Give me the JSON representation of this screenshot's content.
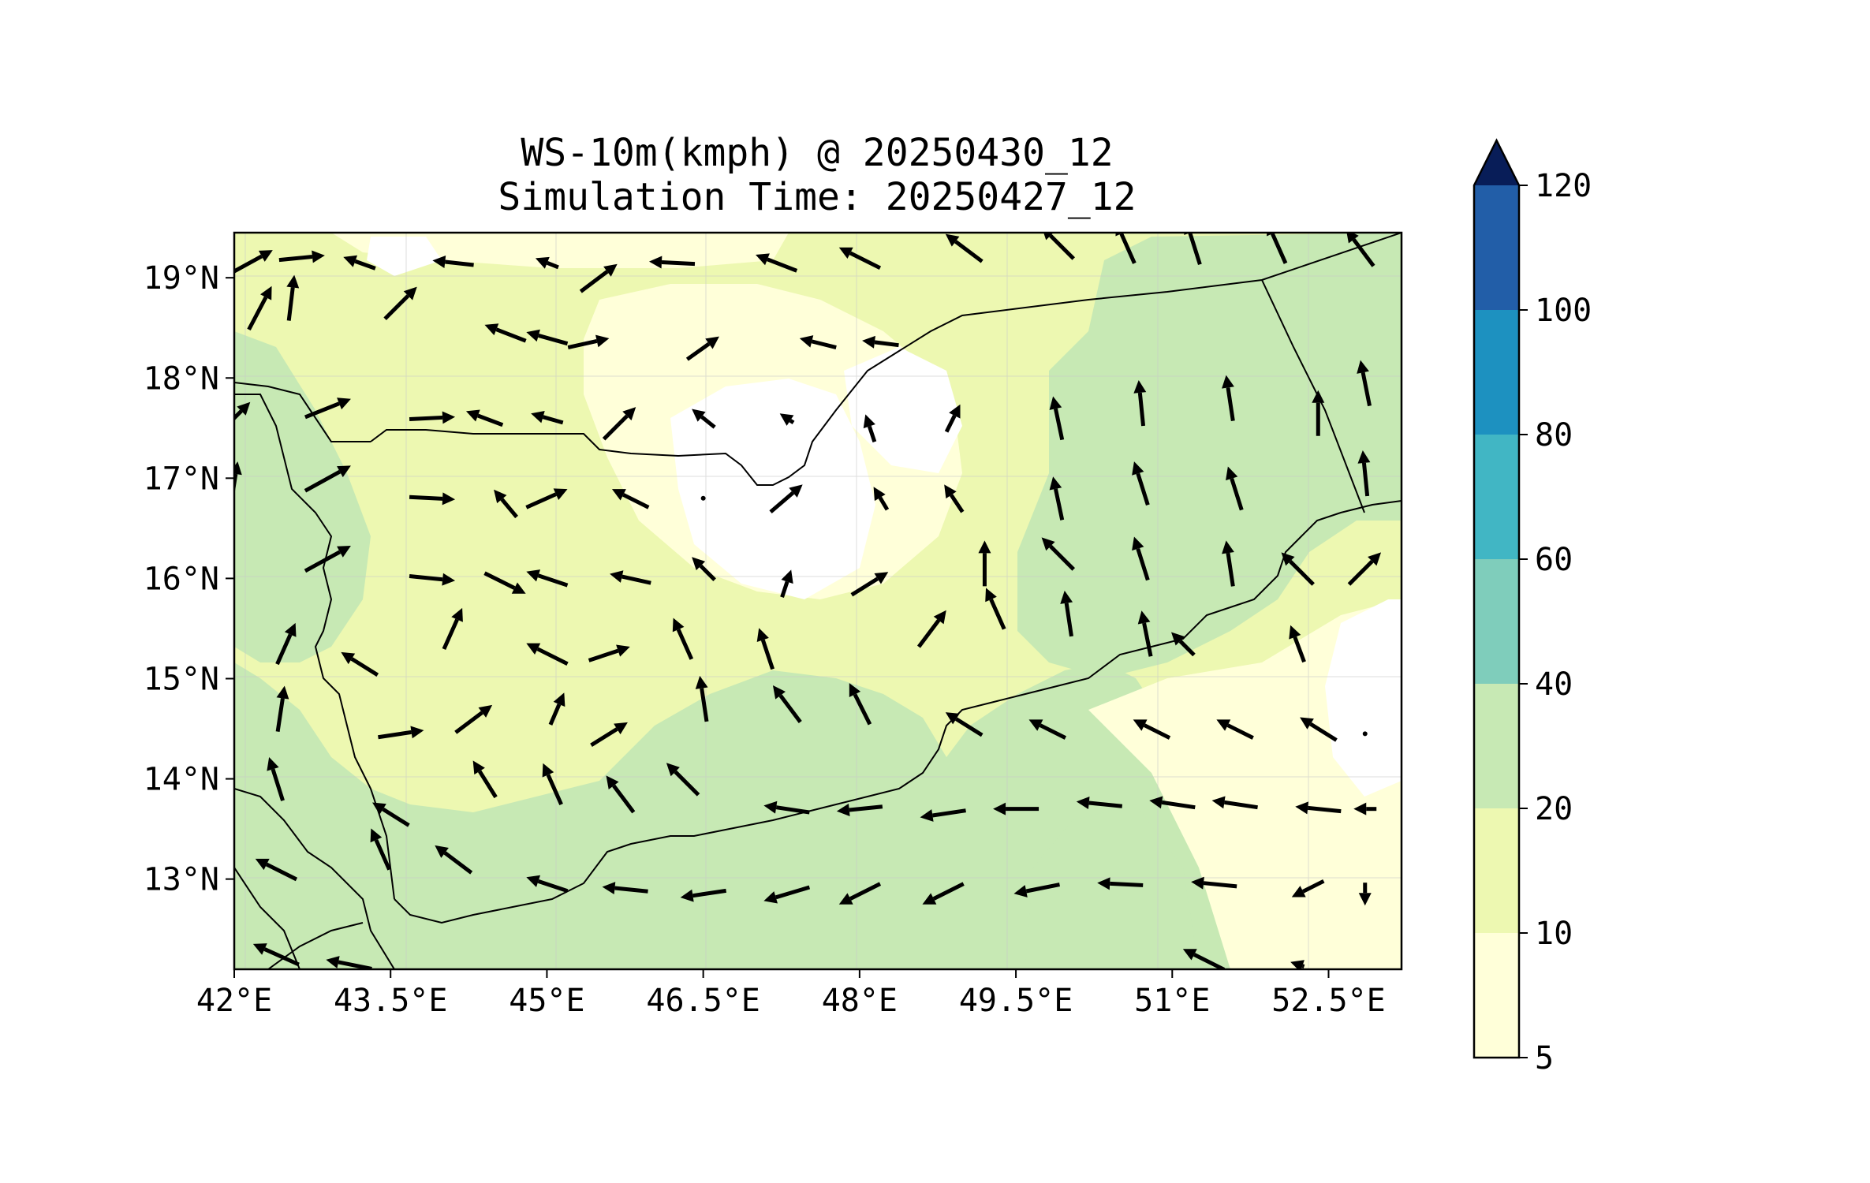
{
  "title": {
    "line1": "WS-10m(kmph) @ 20250430_12",
    "line2": "Simulation Time: 20250427_12"
  },
  "map": {
    "lon_range": [
      42.0,
      53.2
    ],
    "lat_range": [
      12.1,
      19.45
    ],
    "x_ticks": [
      {
        "value": 42.0,
        "label": "42°E"
      },
      {
        "value": 43.5,
        "label": "43.5°E"
      },
      {
        "value": 45.0,
        "label": "45°E"
      },
      {
        "value": 46.5,
        "label": "46.5°E"
      },
      {
        "value": 48.0,
        "label": "48°E"
      },
      {
        "value": 49.5,
        "label": "49.5°E"
      },
      {
        "value": 51.0,
        "label": "51°E"
      },
      {
        "value": 52.5,
        "label": "52.5°E"
      }
    ],
    "y_ticks": [
      {
        "value": 19,
        "label": "19°N"
      },
      {
        "value": 18,
        "label": "18°N"
      },
      {
        "value": 17,
        "label": "17°N"
      },
      {
        "value": 16,
        "label": "16°N"
      },
      {
        "value": 15,
        "label": "15°N"
      },
      {
        "value": 14,
        "label": "14°N"
      },
      {
        "value": 13,
        "label": "13°N"
      }
    ]
  },
  "colorbar": {
    "levels": [
      5,
      10,
      20,
      40,
      60,
      80,
      100,
      120
    ],
    "labels": [
      "5",
      "10",
      "20",
      "40",
      "60",
      "80",
      "100",
      "120"
    ],
    "colors": [
      "#ffffd9",
      "#edf8b1",
      "#c7e9b4",
      "#7fcdbb",
      "#41b6c4",
      "#1d91c0",
      "#225ea8",
      "#253494"
    ],
    "extend_color": "#081d58",
    "extend": "max"
  },
  "chart_data": {
    "type": "heatmap",
    "variable": "10 m wind speed (kmph) with wind vectors",
    "wind_vectors": [
      {
        "lon": 42.15,
        "lat": 19.15,
        "u": 1.0,
        "v": 0.55
      },
      {
        "lon": 42.25,
        "lat": 18.7,
        "u": 0.5,
        "v": 0.95
      },
      {
        "lon": 42.55,
        "lat": 18.8,
        "u": 0.12,
        "v": 1.0
      },
      {
        "lon": 42.65,
        "lat": 19.2,
        "u": 1.0,
        "v": 0.1
      },
      {
        "lon": 43.2,
        "lat": 19.15,
        "u": -0.7,
        "v": 0.25
      },
      {
        "lon": 43.6,
        "lat": 18.75,
        "u": 0.7,
        "v": 0.7
      },
      {
        "lon": 44.1,
        "lat": 19.15,
        "u": -0.9,
        "v": 0.1
      },
      {
        "lon": 44.6,
        "lat": 18.45,
        "u": -0.9,
        "v": 0.35
      },
      {
        "lon": 45.0,
        "lat": 19.15,
        "u": -0.5,
        "v": 0.2
      },
      {
        "lon": 45.5,
        "lat": 19.0,
        "u": 0.8,
        "v": 0.6
      },
      {
        "lon": 45.0,
        "lat": 18.4,
        "u": -0.9,
        "v": 0.25
      },
      {
        "lon": 45.4,
        "lat": 18.35,
        "u": 0.9,
        "v": 0.2
      },
      {
        "lon": 46.2,
        "lat": 19.15,
        "u": -1.0,
        "v": 0.05
      },
      {
        "lon": 46.5,
        "lat": 18.3,
        "u": 0.7,
        "v": 0.5
      },
      {
        "lon": 47.2,
        "lat": 19.15,
        "u": -0.9,
        "v": 0.35
      },
      {
        "lon": 47.6,
        "lat": 18.35,
        "u": -0.8,
        "v": 0.2
      },
      {
        "lon": 48.0,
        "lat": 19.2,
        "u": -0.9,
        "v": 0.45
      },
      {
        "lon": 48.2,
        "lat": 18.35,
        "u": -0.8,
        "v": 0.1
      },
      {
        "lon": 49.0,
        "lat": 19.3,
        "u": -0.8,
        "v": 0.6
      },
      {
        "lon": 49.9,
        "lat": 19.35,
        "u": -0.7,
        "v": 0.7
      },
      {
        "lon": 50.55,
        "lat": 19.35,
        "u": -0.4,
        "v": 0.9
      },
      {
        "lon": 51.2,
        "lat": 19.35,
        "u": -0.3,
        "v": 0.95
      },
      {
        "lon": 52.0,
        "lat": 19.35,
        "u": -0.4,
        "v": 0.9
      },
      {
        "lon": 52.8,
        "lat": 19.3,
        "u": -0.6,
        "v": 0.8
      },
      {
        "lon": 42.0,
        "lat": 17.6,
        "u": 0.7,
        "v": 0.7
      },
      {
        "lon": 42.0,
        "lat": 16.95,
        "u": 0.15,
        "v": 0.95
      },
      {
        "lon": 42.9,
        "lat": 17.7,
        "u": 1.0,
        "v": 0.4
      },
      {
        "lon": 43.9,
        "lat": 17.6,
        "u": 1.0,
        "v": 0.05
      },
      {
        "lon": 44.4,
        "lat": 17.6,
        "u": -0.8,
        "v": 0.3
      },
      {
        "lon": 45.0,
        "lat": 17.6,
        "u": -0.7,
        "v": 0.2
      },
      {
        "lon": 45.7,
        "lat": 17.55,
        "u": 0.7,
        "v": 0.7
      },
      {
        "lon": 46.5,
        "lat": 17.6,
        "u": -0.5,
        "v": 0.4
      },
      {
        "lon": 47.3,
        "lat": 17.6,
        "u": -0.3,
        "v": 0.2
      },
      {
        "lon": 48.1,
        "lat": 17.5,
        "u": -0.2,
        "v": 0.6
      },
      {
        "lon": 48.9,
        "lat": 17.6,
        "u": 0.3,
        "v": 0.6
      },
      {
        "lon": 49.9,
        "lat": 17.6,
        "u": -0.2,
        "v": 0.95
      },
      {
        "lon": 50.7,
        "lat": 17.75,
        "u": -0.1,
        "v": 1.0
      },
      {
        "lon": 51.55,
        "lat": 17.8,
        "u": -0.15,
        "v": 1.0
      },
      {
        "lon": 52.4,
        "lat": 17.65,
        "u": 0.0,
        "v": 1.0
      },
      {
        "lon": 52.85,
        "lat": 17.95,
        "u": -0.2,
        "v": 1.0
      },
      {
        "lon": 42.9,
        "lat": 17.0,
        "u": 1.0,
        "v": 0.55
      },
      {
        "lon": 43.9,
        "lat": 16.8,
        "u": 1.0,
        "v": -0.05
      },
      {
        "lon": 44.6,
        "lat": 16.75,
        "u": -0.5,
        "v": 0.6
      },
      {
        "lon": 45.0,
        "lat": 16.8,
        "u": 0.9,
        "v": 0.4
      },
      {
        "lon": 45.8,
        "lat": 16.8,
        "u": -0.8,
        "v": 0.4
      },
      {
        "lon": 46.5,
        "lat": 16.8,
        "u": 0.0,
        "v": 0.0
      },
      {
        "lon": 47.3,
        "lat": 16.8,
        "u": 0.7,
        "v": 0.6
      },
      {
        "lon": 48.2,
        "lat": 16.8,
        "u": -0.3,
        "v": 0.5
      },
      {
        "lon": 48.9,
        "lat": 16.8,
        "u": -0.4,
        "v": 0.6
      },
      {
        "lon": 49.9,
        "lat": 16.8,
        "u": -0.2,
        "v": 0.95
      },
      {
        "lon": 50.7,
        "lat": 16.95,
        "u": -0.3,
        "v": 0.95
      },
      {
        "lon": 51.6,
        "lat": 16.9,
        "u": -0.3,
        "v": 0.95
      },
      {
        "lon": 52.85,
        "lat": 17.05,
        "u": -0.1,
        "v": 1.0
      },
      {
        "lon": 42.9,
        "lat": 16.2,
        "u": 1.0,
        "v": 0.55
      },
      {
        "lon": 43.9,
        "lat": 16.0,
        "u": 1.0,
        "v": -0.1
      },
      {
        "lon": 44.6,
        "lat": 15.95,
        "u": 0.9,
        "v": -0.45
      },
      {
        "lon": 45.0,
        "lat": 16.0,
        "u": -0.9,
        "v": 0.3
      },
      {
        "lon": 45.8,
        "lat": 16.0,
        "u": -0.9,
        "v": 0.2
      },
      {
        "lon": 46.5,
        "lat": 16.1,
        "u": -0.5,
        "v": 0.5
      },
      {
        "lon": 47.3,
        "lat": 15.95,
        "u": 0.2,
        "v": 0.6
      },
      {
        "lon": 48.1,
        "lat": 15.95,
        "u": 0.8,
        "v": 0.5
      },
      {
        "lon": 48.7,
        "lat": 15.5,
        "u": 0.6,
        "v": 0.8
      },
      {
        "lon": 49.3,
        "lat": 15.7,
        "u": -0.4,
        "v": 0.9
      },
      {
        "lon": 49.2,
        "lat": 16.15,
        "u": 0.0,
        "v": 1.0
      },
      {
        "lon": 49.9,
        "lat": 16.25,
        "u": -0.7,
        "v": 0.7
      },
      {
        "lon": 50.0,
        "lat": 15.65,
        "u": -0.15,
        "v": 1.0
      },
      {
        "lon": 50.7,
        "lat": 16.2,
        "u": -0.3,
        "v": 0.95
      },
      {
        "lon": 50.75,
        "lat": 15.45,
        "u": -0.2,
        "v": 1.0
      },
      {
        "lon": 51.55,
        "lat": 16.15,
        "u": -0.15,
        "v": 1.0
      },
      {
        "lon": 51.1,
        "lat": 15.35,
        "u": -0.5,
        "v": 0.5
      },
      {
        "lon": 52.2,
        "lat": 16.1,
        "u": -0.7,
        "v": 0.7
      },
      {
        "lon": 52.2,
        "lat": 15.35,
        "u": -0.3,
        "v": 0.8
      },
      {
        "lon": 52.85,
        "lat": 16.1,
        "u": 0.7,
        "v": 0.7
      },
      {
        "lon": 42.5,
        "lat": 15.35,
        "u": 0.4,
        "v": 0.9
      },
      {
        "lon": 43.2,
        "lat": 15.15,
        "u": -0.8,
        "v": 0.5
      },
      {
        "lon": 44.1,
        "lat": 15.5,
        "u": 0.4,
        "v": 0.9
      },
      {
        "lon": 45.0,
        "lat": 15.25,
        "u": -0.9,
        "v": 0.45
      },
      {
        "lon": 45.6,
        "lat": 15.25,
        "u": 0.9,
        "v": 0.3
      },
      {
        "lon": 46.3,
        "lat": 15.4,
        "u": -0.4,
        "v": 0.9
      },
      {
        "lon": 47.1,
        "lat": 15.3,
        "u": -0.3,
        "v": 0.9
      },
      {
        "lon": 42.45,
        "lat": 14.7,
        "u": 0.15,
        "v": 1.0
      },
      {
        "lon": 43.6,
        "lat": 14.45,
        "u": 1.0,
        "v": 0.15
      },
      {
        "lon": 44.3,
        "lat": 14.6,
        "u": 0.8,
        "v": 0.6
      },
      {
        "lon": 45.1,
        "lat": 14.7,
        "u": 0.3,
        "v": 0.7
      },
      {
        "lon": 45.6,
        "lat": 14.45,
        "u": 0.8,
        "v": 0.5
      },
      {
        "lon": 46.5,
        "lat": 14.8,
        "u": -0.15,
        "v": 1.0
      },
      {
        "lon": 47.3,
        "lat": 14.75,
        "u": -0.6,
        "v": 0.8
      },
      {
        "lon": 48.0,
        "lat": 14.75,
        "u": -0.45,
        "v": 0.9
      },
      {
        "lon": 49.0,
        "lat": 14.55,
        "u": -0.8,
        "v": 0.5
      },
      {
        "lon": 49.8,
        "lat": 14.5,
        "u": -0.8,
        "v": 0.4
      },
      {
        "lon": 50.8,
        "lat": 14.5,
        "u": -0.8,
        "v": 0.4
      },
      {
        "lon": 51.6,
        "lat": 14.5,
        "u": -0.8,
        "v": 0.4
      },
      {
        "lon": 52.4,
        "lat": 14.5,
        "u": -0.8,
        "v": 0.5
      },
      {
        "lon": 52.85,
        "lat": 14.45,
        "u": 0.0,
        "v": 0.0
      },
      {
        "lon": 42.4,
        "lat": 14.0,
        "u": -0.3,
        "v": 0.95
      },
      {
        "lon": 43.5,
        "lat": 13.65,
        "u": -0.8,
        "v": 0.5
      },
      {
        "lon": 44.4,
        "lat": 14.0,
        "u": -0.5,
        "v": 0.8
      },
      {
        "lon": 45.05,
        "lat": 13.95,
        "u": -0.4,
        "v": 0.9
      },
      {
        "lon": 45.7,
        "lat": 13.85,
        "u": -0.6,
        "v": 0.8
      },
      {
        "lon": 46.3,
        "lat": 14.0,
        "u": -0.7,
        "v": 0.7
      },
      {
        "lon": 47.3,
        "lat": 13.7,
        "u": -1.0,
        "v": 0.15
      },
      {
        "lon": 48.0,
        "lat": 13.7,
        "u": -1.0,
        "v": -0.1
      },
      {
        "lon": 48.8,
        "lat": 13.65,
        "u": -1.0,
        "v": -0.15
      },
      {
        "lon": 49.5,
        "lat": 13.7,
        "u": -1.0,
        "v": 0.0
      },
      {
        "lon": 50.3,
        "lat": 13.75,
        "u": -1.0,
        "v": 0.1
      },
      {
        "lon": 51.0,
        "lat": 13.75,
        "u": -1.0,
        "v": 0.15
      },
      {
        "lon": 51.6,
        "lat": 13.75,
        "u": -1.0,
        "v": 0.15
      },
      {
        "lon": 52.4,
        "lat": 13.7,
        "u": -1.0,
        "v": 0.1
      },
      {
        "lon": 52.85,
        "lat": 13.7,
        "u": -0.5,
        "v": 0.0
      },
      {
        "lon": 42.4,
        "lat": 13.1,
        "u": -0.9,
        "v": 0.45
      },
      {
        "lon": 43.4,
        "lat": 13.3,
        "u": -0.4,
        "v": 0.9
      },
      {
        "lon": 44.1,
        "lat": 13.2,
        "u": -0.8,
        "v": 0.6
      },
      {
        "lon": 45.0,
        "lat": 12.95,
        "u": -0.9,
        "v": 0.3
      },
      {
        "lon": 45.75,
        "lat": 12.9,
        "u": -1.0,
        "v": 0.1
      },
      {
        "lon": 46.5,
        "lat": 12.85,
        "u": -1.0,
        "v": -0.15
      },
      {
        "lon": 47.3,
        "lat": 12.85,
        "u": -1.0,
        "v": -0.3
      },
      {
        "lon": 48.0,
        "lat": 12.85,
        "u": -0.9,
        "v": -0.45
      },
      {
        "lon": 48.8,
        "lat": 12.85,
        "u": -0.9,
        "v": -0.45
      },
      {
        "lon": 49.7,
        "lat": 12.9,
        "u": -1.0,
        "v": -0.2
      },
      {
        "lon": 50.5,
        "lat": 12.95,
        "u": -1.0,
        "v": 0.05
      },
      {
        "lon": 51.4,
        "lat": 12.95,
        "u": -1.0,
        "v": 0.1
      },
      {
        "lon": 52.3,
        "lat": 12.9,
        "u": -0.7,
        "v": -0.35
      },
      {
        "lon": 52.85,
        "lat": 12.85,
        "u": 0.0,
        "v": -0.5
      },
      {
        "lon": 42.4,
        "lat": 12.25,
        "u": -1.0,
        "v": 0.45
      },
      {
        "lon": 43.1,
        "lat": 12.15,
        "u": -1.0,
        "v": 0.2
      },
      {
        "lon": 51.3,
        "lat": 12.2,
        "u": -0.9,
        "v": 0.45
      },
      {
        "lon": 52.2,
        "lat": 12.15,
        "u": -0.3,
        "v": 0.1
      }
    ]
  }
}
